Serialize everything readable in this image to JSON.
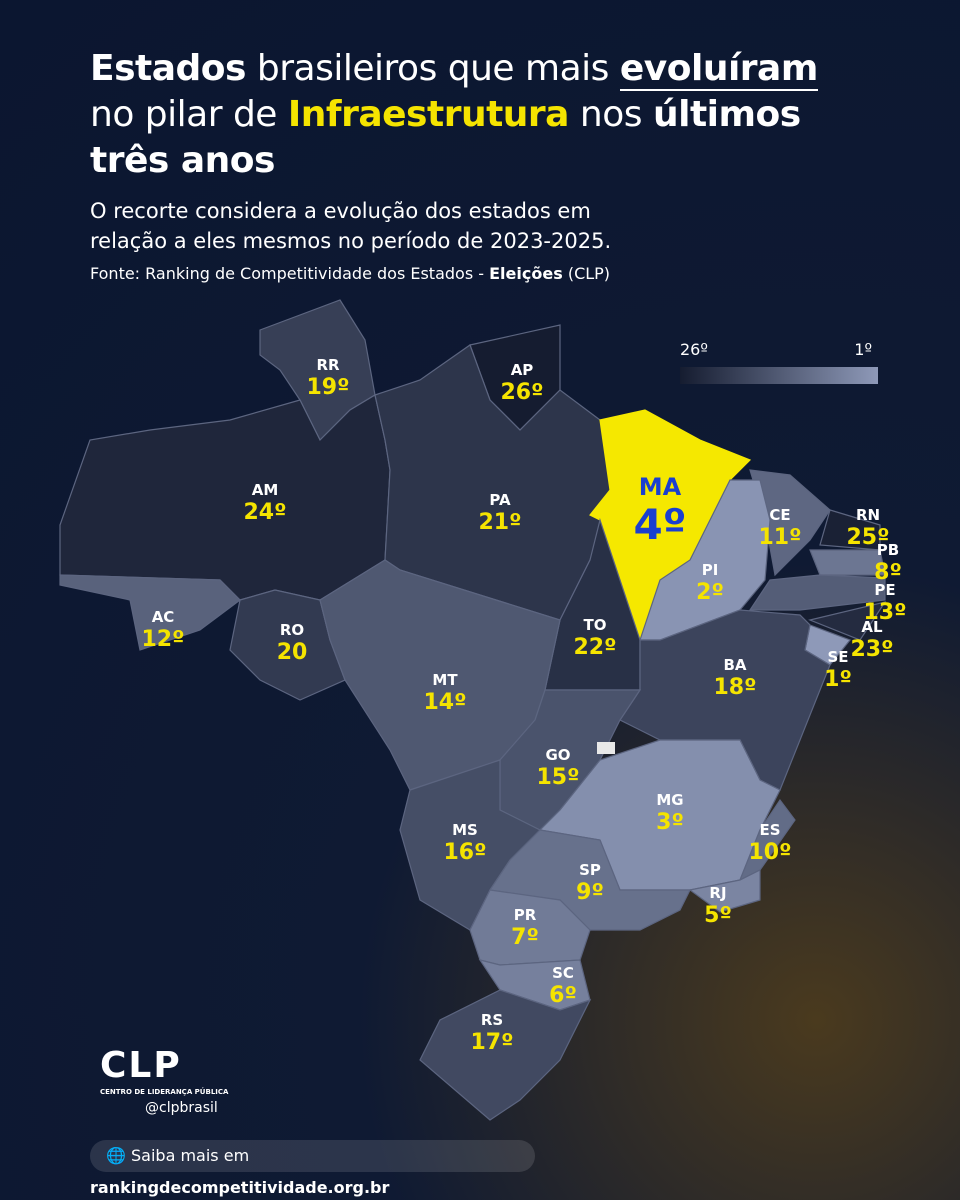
{
  "header": {
    "title": [
      "Estados",
      "brasileiros que mais",
      "evoluíram",
      "no pilar de",
      "Infraestrutura",
      "nos",
      "últimos",
      "três anos"
    ],
    "subtitle": [
      "O recorte considera a evolução dos estados em",
      "relação a eles mesmos no período de 2023-2025."
    ],
    "source": [
      "Fonte: Ranking de Competitividade dos Estados -",
      "Eleições",
      "(CLP)"
    ]
  },
  "legend": {
    "low": "26º",
    "high": "1º"
  },
  "states": [
    {
      "code": "RR",
      "rank": "19º"
    },
    {
      "code": "AP",
      "rank": "26º"
    },
    {
      "code": "AM",
      "rank": "24º"
    },
    {
      "code": "PA",
      "rank": "21º"
    },
    {
      "code": "MA",
      "rank": "4º"
    },
    {
      "code": "CE",
      "rank": "11º"
    },
    {
      "code": "RN",
      "rank": "25º"
    },
    {
      "code": "PB",
      "rank": "8º"
    },
    {
      "code": "PI",
      "rank": "2º"
    },
    {
      "code": "PE",
      "rank": "13º"
    },
    {
      "code": "AC",
      "rank": "12º"
    },
    {
      "code": "RO",
      "rank": "20"
    },
    {
      "code": "TO",
      "rank": "22º"
    },
    {
      "code": "AL",
      "rank": "23º"
    },
    {
      "code": "SE",
      "rank": "1º"
    },
    {
      "code": "BA",
      "rank": "18º"
    },
    {
      "code": "MT",
      "rank": "14º"
    },
    {
      "code": "GO",
      "rank": "15º"
    },
    {
      "code": "MG",
      "rank": "3º"
    },
    {
      "code": "MS",
      "rank": "16º"
    },
    {
      "code": "ES",
      "rank": "10º"
    },
    {
      "code": "SP",
      "rank": "9º"
    },
    {
      "code": "RJ",
      "rank": "5º"
    },
    {
      "code": "PR",
      "rank": "7º"
    },
    {
      "code": "SC",
      "rank": "6º"
    },
    {
      "code": "RS",
      "rank": "17º"
    }
  ],
  "footer": {
    "logo": "CLP",
    "org": "CENTRO DE LIDERANÇA PÚBLICA",
    "handle": "@clpbrasil",
    "link": [
      "Saiba mais em",
      "rankingdecompetitividade.org.br"
    ]
  }
}
